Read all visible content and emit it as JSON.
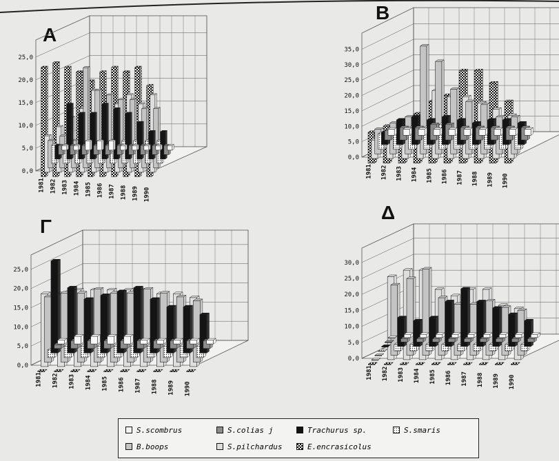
{
  "chart_data": [
    {
      "type": "bar",
      "panel": "A",
      "ylim": [
        0,
        25
      ],
      "yticks": [
        "0,0",
        "5,0",
        "10,0",
        "15,0",
        "20,0",
        "25,0"
      ],
      "categories": [
        "1981",
        "1982",
        "1983",
        "1984",
        "1985",
        "1986",
        "1987",
        "1988",
        "1989",
        "1990"
      ],
      "series": [
        {
          "name": "S.scombrus",
          "values": [
            1,
            1,
            2,
            2,
            2,
            1,
            1,
            1,
            1,
            1
          ]
        },
        {
          "name": "S.colias",
          "values": [
            2,
            2,
            2,
            2,
            2,
            2,
            2,
            2,
            2,
            2
          ]
        },
        {
          "name": "Trachurus sp.",
          "values": [
            3,
            12,
            10,
            10,
            12,
            11,
            10,
            8,
            6,
            6
          ]
        },
        {
          "name": "S.smaris",
          "values": [
            4,
            4,
            4,
            4,
            4,
            5,
            5,
            5,
            5,
            5
          ]
        },
        {
          "name": "B.boops",
          "values": [
            6,
            7,
            6,
            22,
            17,
            16,
            15,
            15,
            13,
            13
          ]
        },
        {
          "name": "S.pilchardus",
          "values": [
            8,
            10,
            12,
            14,
            18,
            15,
            15,
            17,
            15,
            17
          ]
        },
        {
          "name": "E.encrasicolus",
          "values": [
            24,
            25,
            24,
            23,
            21,
            23,
            24,
            23,
            24,
            20
          ]
        }
      ]
    },
    {
      "type": "bar",
      "panel": "B",
      "ylim": [
        0,
        35
      ],
      "yticks": [
        "0,0",
        "5,0",
        "10,0",
        "15,0",
        "20,0",
        "25,0",
        "30,0",
        "35,0"
      ],
      "categories": [
        "1981",
        "1982",
        "1983",
        "1984",
        "1985",
        "1986",
        "1987",
        "1988",
        "1989",
        "1990"
      ],
      "series": [
        {
          "name": "S.scombrus",
          "values": [
            2,
            2,
            2,
            2,
            2,
            2,
            2,
            2,
            2,
            2
          ]
        },
        {
          "name": "S.colias",
          "values": [
            3,
            4,
            4,
            5,
            5,
            4,
            4,
            4,
            4,
            4
          ]
        },
        {
          "name": "Trachurus sp.",
          "values": [
            4,
            8,
            9,
            8,
            9,
            8,
            7,
            8,
            8,
            7
          ]
        },
        {
          "name": "S.smaris",
          "values": [
            5,
            6,
            7,
            7,
            8,
            6,
            5,
            6,
            6,
            6
          ]
        },
        {
          "name": "B.boops",
          "values": [
            8,
            10,
            12,
            35,
            30,
            21,
            17,
            16,
            12,
            12
          ]
        },
        {
          "name": "S.pilchardus",
          "values": [
            6,
            8,
            10,
            8,
            22,
            20,
            20,
            18,
            16,
            14
          ]
        },
        {
          "name": "E.encrasicolus",
          "values": [
            10,
            12,
            14,
            16,
            20,
            22,
            30,
            30,
            26,
            20
          ]
        }
      ]
    },
    {
      "type": "bar",
      "panel": "Γ",
      "ylim": [
        0,
        25
      ],
      "yticks": [
        "0,0",
        "5,0",
        "10,0",
        "15,0",
        "20,0",
        "25,0"
      ],
      "categories": [
        "1981",
        "1982",
        "1983",
        "1984",
        "1985",
        "1986",
        "1987",
        "1988",
        "1989",
        "1990"
      ],
      "series": [
        {
          "name": "S.scombrus",
          "values": [
            1,
            2,
            2,
            2,
            2,
            1,
            1,
            1,
            1,
            1
          ]
        },
        {
          "name": "S.colias",
          "values": [
            1,
            2,
            2,
            2,
            2,
            2,
            2,
            2,
            2,
            2
          ]
        },
        {
          "name": "Trachurus sp.",
          "values": [
            24,
            17,
            14,
            15,
            16,
            17,
            14,
            12,
            12,
            10
          ]
        },
        {
          "name": "S.smaris",
          "values": [
            2,
            3,
            3,
            3,
            3,
            3,
            3,
            3,
            3,
            3
          ]
        },
        {
          "name": "B.boops",
          "values": [
            17,
            18,
            18,
            19,
            18,
            18,
            19,
            18,
            17,
            16
          ]
        },
        {
          "name": "S.pilchardus",
          "values": [
            19,
            19,
            20,
            20,
            20,
            20,
            20,
            19,
            19,
            18
          ]
        },
        {
          "name": "E.encrasicolus",
          "values": [
            0,
            0,
            0,
            0,
            0,
            0,
            0,
            0,
            0,
            0
          ]
        }
      ]
    },
    {
      "type": "bar",
      "panel": "Δ",
      "ylim": [
        0,
        30
      ],
      "yticks": [
        "0,0",
        "5,0",
        "10,0",
        "15,0",
        "20,0",
        "25,0",
        "30,0"
      ],
      "categories": [
        "1981",
        "1982",
        "1983",
        "1984",
        "1985",
        "1986",
        "1987",
        "1988",
        "1989",
        "1990"
      ],
      "series": [
        {
          "name": "S.scombrus",
          "values": [
            0,
            1,
            1,
            1,
            1,
            1,
            1,
            1,
            1,
            1
          ]
        },
        {
          "name": "S.colias",
          "values": [
            0,
            1,
            1,
            1,
            1,
            1,
            1,
            1,
            1,
            1
          ]
        },
        {
          "name": "Trachurus sp.",
          "values": [
            0,
            9,
            8,
            9,
            14,
            18,
            14,
            12,
            10,
            8
          ]
        },
        {
          "name": "S.smaris",
          "values": [
            0,
            2,
            2,
            2,
            2,
            2,
            2,
            2,
            2,
            2
          ]
        },
        {
          "name": "B.boops",
          "values": [
            0,
            22,
            24,
            27,
            18,
            16,
            16,
            17,
            15,
            14
          ]
        },
        {
          "name": "S.pilchardus",
          "values": [
            0,
            26,
            28,
            28,
            22,
            20,
            22,
            22,
            17,
            16
          ]
        },
        {
          "name": "E.encrasicolus",
          "values": [
            0,
            0,
            0,
            0,
            0,
            0,
            0,
            0,
            0,
            0
          ]
        }
      ]
    }
  ],
  "legend": [
    {
      "label": "S.scombrus",
      "pattern": "white"
    },
    {
      "label": "S.colias j",
      "pattern": "gray"
    },
    {
      "label": "Trachurus sp.",
      "pattern": "black"
    },
    {
      "label": "S.smaris",
      "pattern": "dots"
    },
    {
      "label": "B.boops",
      "pattern": "lightgray"
    },
    {
      "label": "S.pilchardus",
      "pattern": "lighter"
    },
    {
      "label": "E.encrasicolus",
      "pattern": "checker"
    }
  ],
  "colors": {
    "white": "#f7f7f7",
    "gray": "#8c8c8c",
    "black": "#141414",
    "lightgray": "#c4c4c4",
    "lighter": "#dedede",
    "grid": "#555555"
  }
}
